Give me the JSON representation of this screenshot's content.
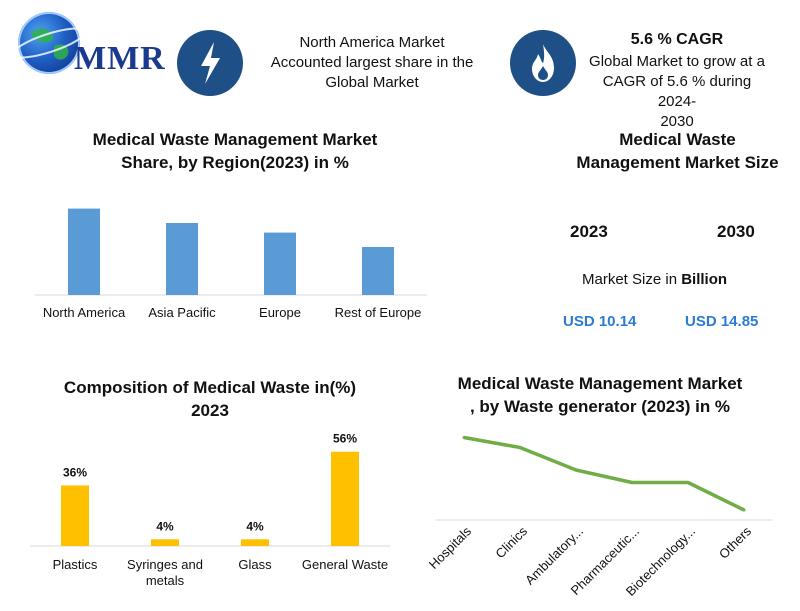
{
  "header": {
    "logo_text": "MMR",
    "info1_lines": [
      "North America Market",
      "Accounted largest share in the",
      "Global Market"
    ],
    "cagr_title": "5.6 % CAGR",
    "cagr_lines": [
      "Global Market to grow at a",
      "CAGR of 5.6 % during 2024-",
      "2030"
    ]
  },
  "colors": {
    "bar_blue": "#5b9bd5",
    "bar_yellow": "#ffc000",
    "line_green": "#70ad47",
    "icon_circle": "#1e4f86",
    "usd_blue": "#2b7bd4"
  },
  "icons": {
    "info1": "lightning-icon",
    "info2": "flame-icon"
  },
  "market_size": {
    "title_lines": [
      "Medical Waste",
      "Management Market Size"
    ],
    "year_a": "2023",
    "year_b": "2030",
    "label_prefix": "Market Size in ",
    "label_bold": "Billion",
    "value_a": "USD 10.14",
    "value_b": "USD 14.85"
  },
  "chart_data": [
    {
      "type": "bar",
      "title": "Medical Waste Management Market Share, by Region(2023) in %",
      "title_lines": [
        "Medical Waste Management Market",
        "Share, by Region(2023) in %"
      ],
      "categories": [
        "North America",
        "Asia Pacific",
        "Europe",
        "Rest of Europe"
      ],
      "values": [
        36,
        30,
        26,
        20
      ],
      "ylim": [
        0,
        40
      ],
      "grid": false,
      "legend": "none"
    },
    {
      "type": "bar",
      "title": "Composition of Medical Waste in(%) 2023",
      "title_lines": [
        "Composition of Medical Waste in(%)",
        "2023"
      ],
      "categories": [
        "Plastics",
        "Syringes and metals",
        "Glass",
        "General Waste"
      ],
      "category_lines": [
        [
          "Plastics"
        ],
        [
          "Syringes and",
          "metals"
        ],
        [
          "Glass"
        ],
        [
          "General Waste"
        ]
      ],
      "values": [
        36,
        4,
        4,
        56
      ],
      "data_labels": [
        "36%",
        "4%",
        "4%",
        "56%"
      ],
      "ylim": [
        0,
        60
      ],
      "grid": false,
      "legend": "none"
    },
    {
      "type": "line",
      "title": "Medical Waste Management Market , by Waste generator (2023) in %",
      "title_lines": [
        "Medical Waste Management Market",
        ", by Waste generator (2023) in %"
      ],
      "categories": [
        "Hospitals",
        "Clinics",
        "Ambulatory...",
        "Pharmaceutic...",
        "Biotechnology...",
        "Others"
      ],
      "values": [
        33,
        29,
        20,
        15,
        15,
        4
      ],
      "ylim": [
        0,
        40
      ],
      "grid": false,
      "legend": "none"
    }
  ]
}
